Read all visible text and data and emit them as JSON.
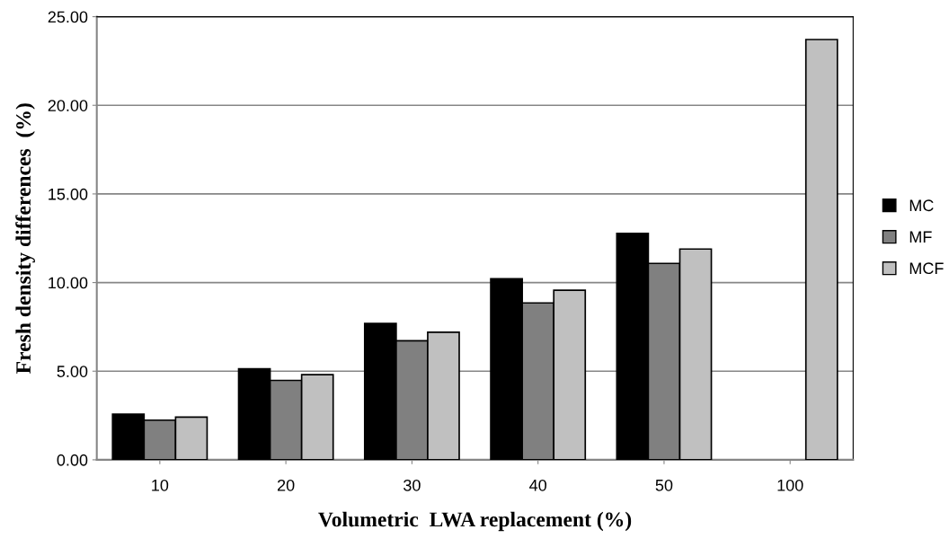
{
  "chart_data": {
    "type": "bar",
    "xlabel": "Volumetric  LWA replacement (%)",
    "ylabel": "Fresh density differences  (%)",
    "categories": [
      "10",
      "20",
      "30",
      "40",
      "50",
      "100"
    ],
    "series": [
      {
        "name": "MC",
        "color": "#000000",
        "values": [
          2.58,
          5.14,
          7.69,
          10.22,
          12.77,
          null
        ]
      },
      {
        "name": "MF",
        "color": "#808080",
        "values": [
          2.24,
          4.48,
          6.72,
          8.85,
          11.08,
          null
        ]
      },
      {
        "name": "MCF",
        "color": "#c0c0c0",
        "values": [
          2.41,
          4.8,
          7.2,
          9.57,
          11.89,
          23.71
        ]
      }
    ],
    "ylim": [
      0,
      25
    ],
    "yticks": [
      {
        "value": 0,
        "label": "0.00"
      },
      {
        "value": 5,
        "label": "5.00"
      },
      {
        "value": 10,
        "label": "10.00"
      },
      {
        "value": 15,
        "label": "15.00"
      },
      {
        "value": 20,
        "label": "20.00"
      },
      {
        "value": 25,
        "label": "25.00"
      }
    ],
    "grid": "y",
    "legend": "right"
  }
}
